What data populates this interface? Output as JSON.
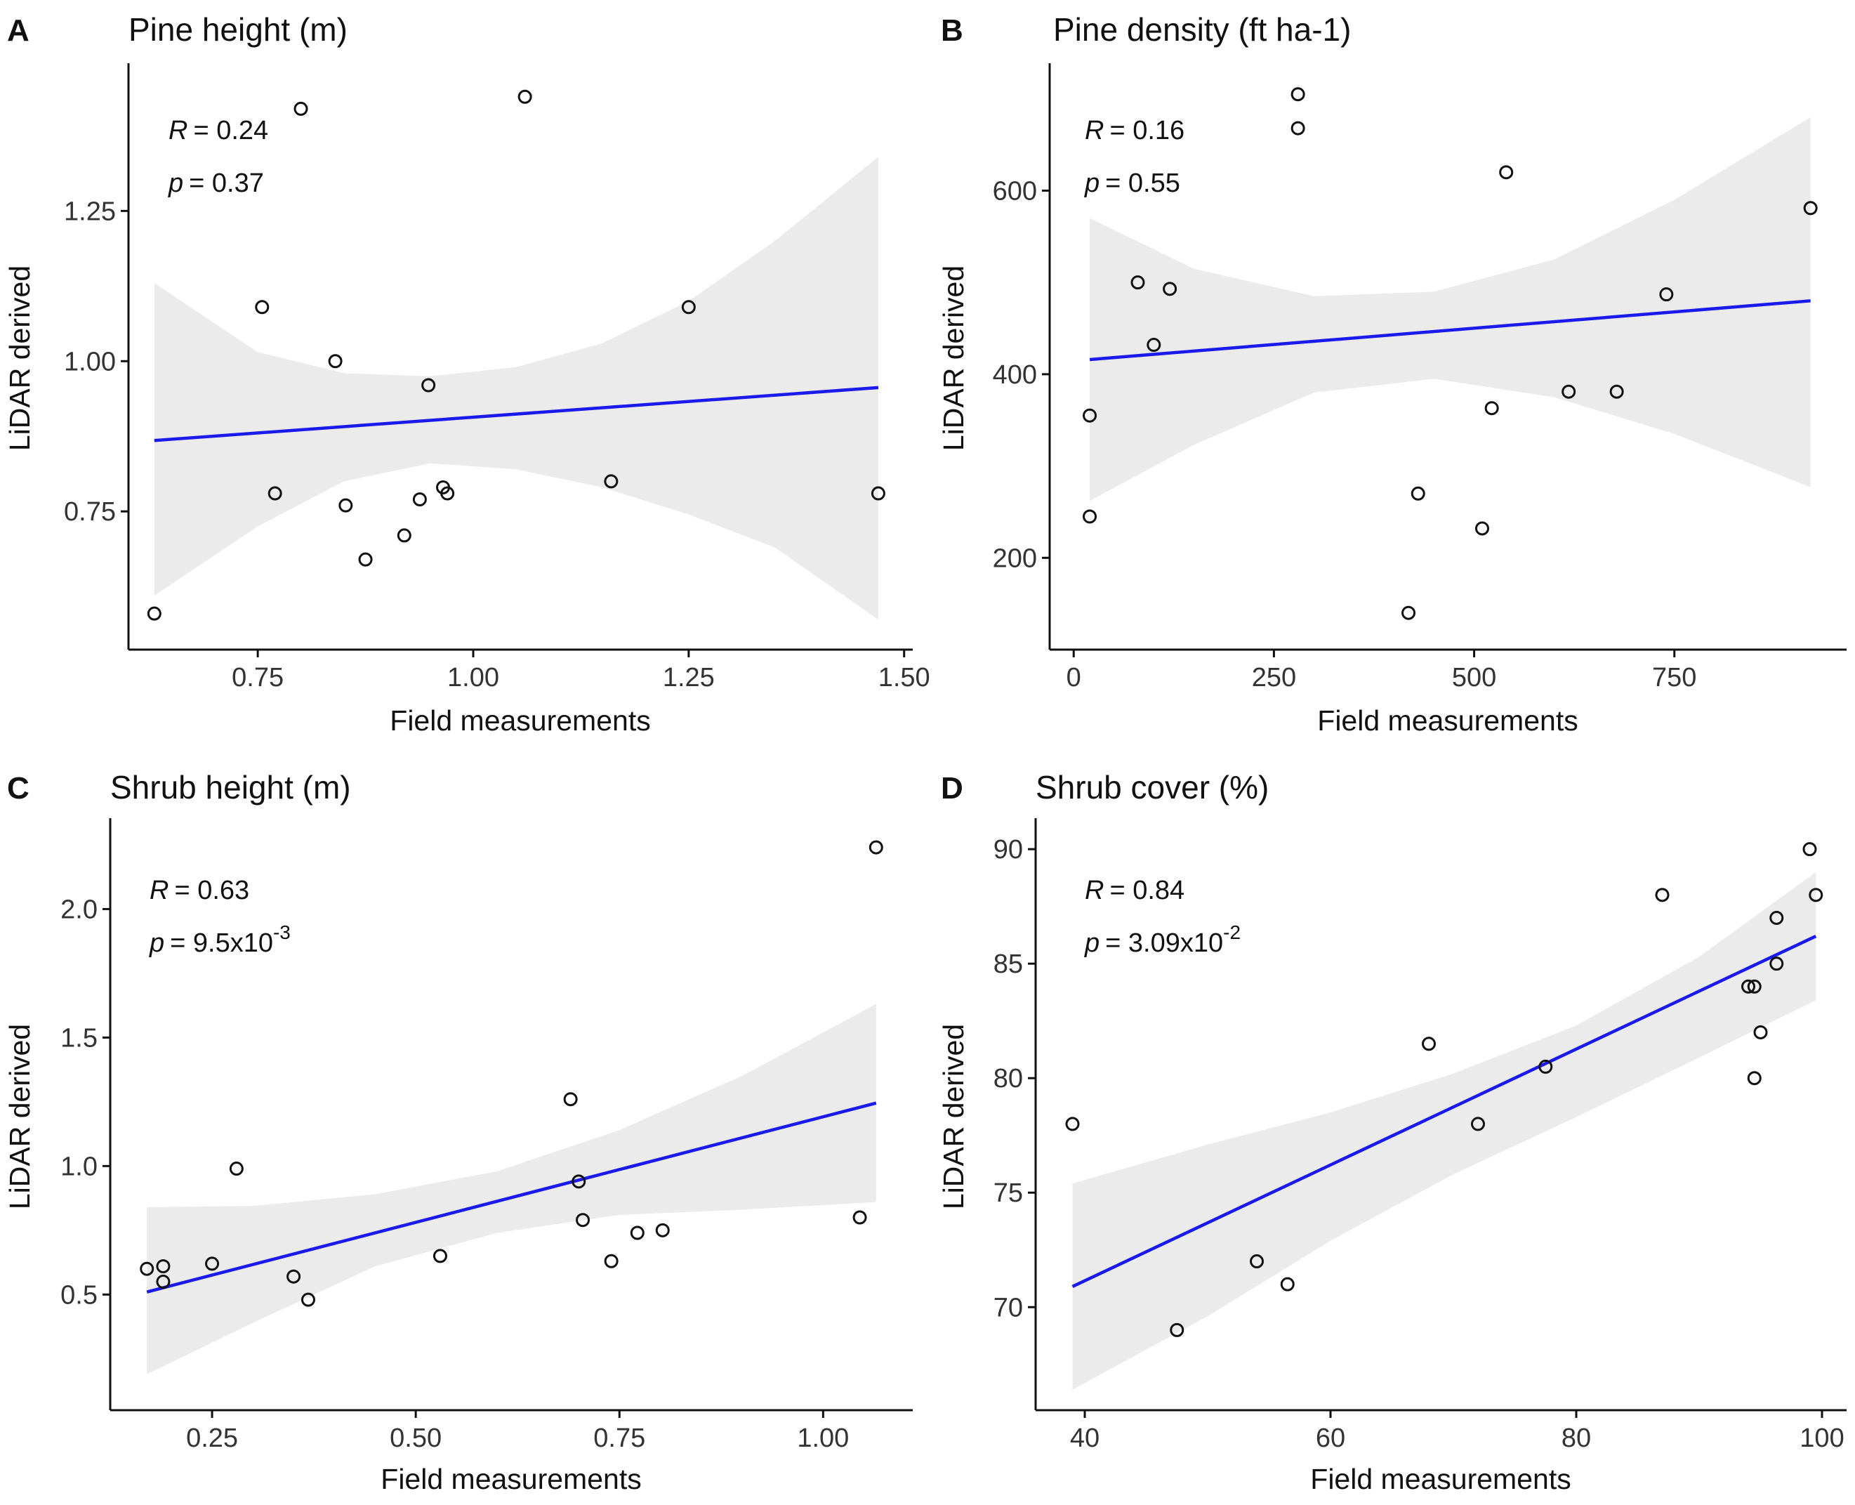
{
  "colors": {
    "fit_line": "#1a1aee",
    "ci_band": "#ebebeb",
    "point_stroke": "#111111"
  },
  "chart_data": [
    {
      "panel": "A",
      "type": "scatter",
      "title": "Pine height (m)",
      "xlabel": "Field measurements",
      "ylabel": "LiDAR derived",
      "xlim": [
        0.6,
        1.51
      ],
      "ylim": [
        0.52,
        1.49
      ],
      "xticks": [
        0.75,
        1.0,
        1.25,
        1.5
      ],
      "xtick_labels": [
        "0.75",
        "1.00",
        "1.25",
        "1.50"
      ],
      "yticks": [
        0.75,
        1.0,
        1.25
      ],
      "ytick_labels": [
        "0.75",
        "1.00",
        "1.25"
      ],
      "annotation": {
        "r_label": "R",
        "r_value": "= 0.24",
        "p_label": "p",
        "p_value": "= 0.37",
        "p_exponent": ""
      },
      "fit": {
        "x_range": [
          0.63,
          1.47
        ],
        "y_range": [
          0.868,
          0.956
        ]
      },
      "ci": {
        "x": [
          0.63,
          0.75,
          0.85,
          0.95,
          1.05,
          1.15,
          1.25,
          1.35,
          1.47
        ],
        "upper": [
          1.13,
          1.015,
          0.98,
          0.975,
          0.99,
          1.03,
          1.1,
          1.2,
          1.34
        ],
        "lower": [
          0.61,
          0.725,
          0.8,
          0.83,
          0.82,
          0.79,
          0.745,
          0.69,
          0.57
        ]
      },
      "points": [
        {
          "x": 0.63,
          "y": 0.58
        },
        {
          "x": 0.755,
          "y": 1.09
        },
        {
          "x": 0.77,
          "y": 0.78
        },
        {
          "x": 0.8,
          "y": 1.42
        },
        {
          "x": 0.84,
          "y": 1.0
        },
        {
          "x": 0.852,
          "y": 0.76
        },
        {
          "x": 0.875,
          "y": 0.67
        },
        {
          "x": 0.92,
          "y": 0.71
        },
        {
          "x": 0.938,
          "y": 0.77
        },
        {
          "x": 0.948,
          "y": 0.96
        },
        {
          "x": 0.965,
          "y": 0.79
        },
        {
          "x": 0.97,
          "y": 0.78
        },
        {
          "x": 1.06,
          "y": 1.44
        },
        {
          "x": 1.16,
          "y": 0.8
        },
        {
          "x": 1.25,
          "y": 1.09
        },
        {
          "x": 1.47,
          "y": 0.78
        }
      ]
    },
    {
      "panel": "B",
      "type": "scatter",
      "title": "Pine density (ft ha-1)",
      "xlabel": "Field measurements",
      "ylabel": "LiDAR derived",
      "xlim": [
        -30,
        965
      ],
      "ylim": [
        100,
        735
      ],
      "xticks": [
        0,
        250,
        500,
        750
      ],
      "xtick_labels": [
        "0",
        "250",
        "500",
        "750"
      ],
      "yticks": [
        200,
        400,
        600
      ],
      "ytick_labels": [
        "200",
        "400",
        "600"
      ],
      "annotation": {
        "r_label": "R",
        "r_value": "= 0.16",
        "p_label": "p",
        "p_value": "= 0.55",
        "p_exponent": ""
      },
      "fit": {
        "x_range": [
          20,
          920
        ],
        "y_range": [
          416,
          480
        ]
      },
      "ci": {
        "x": [
          20,
          150,
          300,
          450,
          600,
          750,
          920
        ],
        "upper": [
          570,
          515,
          485,
          490,
          525,
          590,
          680
        ],
        "lower": [
          262,
          323,
          380,
          395,
          375,
          335,
          277
        ]
      },
      "points": [
        {
          "x": 20,
          "y": 355
        },
        {
          "x": 20,
          "y": 245
        },
        {
          "x": 80,
          "y": 500
        },
        {
          "x": 100,
          "y": 432
        },
        {
          "x": 120,
          "y": 493
        },
        {
          "x": 280,
          "y": 705
        },
        {
          "x": 280,
          "y": 668
        },
        {
          "x": 418,
          "y": 140
        },
        {
          "x": 430,
          "y": 270
        },
        {
          "x": 510,
          "y": 232
        },
        {
          "x": 522,
          "y": 363
        },
        {
          "x": 540,
          "y": 620
        },
        {
          "x": 618,
          "y": 381
        },
        {
          "x": 678,
          "y": 381
        },
        {
          "x": 740,
          "y": 487
        },
        {
          "x": 920,
          "y": 581
        }
      ]
    },
    {
      "panel": "C",
      "type": "scatter",
      "title": "Shrub height (m)",
      "xlabel": "Field measurements",
      "ylabel": "LiDAR derived",
      "xlim": [
        0.125,
        1.11
      ],
      "ylim": [
        0.05,
        2.34
      ],
      "xticks": [
        0.25,
        0.5,
        0.75,
        1.0
      ],
      "xtick_labels": [
        "0.25",
        "0.50",
        "0.75",
        "1.00"
      ],
      "yticks": [
        0.5,
        1.0,
        1.5,
        2.0
      ],
      "ytick_labels": [
        "0.5",
        "1.0",
        "1.5",
        "2.0"
      ],
      "annotation": {
        "r_label": "R",
        "r_value": "= 0.63",
        "p_label": "p",
        "p_value": "= 9.5x10",
        "p_exponent": "-3"
      },
      "fit": {
        "x_range": [
          0.17,
          1.065
        ],
        "y_range": [
          0.51,
          1.245
        ]
      },
      "ci": {
        "x": [
          0.17,
          0.3,
          0.45,
          0.6,
          0.75,
          0.9,
          1.065
        ],
        "upper": [
          0.84,
          0.845,
          0.89,
          0.98,
          1.14,
          1.35,
          1.63
        ],
        "lower": [
          0.19,
          0.39,
          0.61,
          0.74,
          0.81,
          0.83,
          0.86
        ]
      },
      "points": [
        {
          "x": 0.17,
          "y": 0.6
        },
        {
          "x": 0.19,
          "y": 0.61
        },
        {
          "x": 0.19,
          "y": 0.55
        },
        {
          "x": 0.25,
          "y": 0.62
        },
        {
          "x": 0.28,
          "y": 0.99
        },
        {
          "x": 0.35,
          "y": 0.57
        },
        {
          "x": 0.368,
          "y": 0.48
        },
        {
          "x": 0.53,
          "y": 0.65
        },
        {
          "x": 0.69,
          "y": 1.26
        },
        {
          "x": 0.7,
          "y": 0.94
        },
        {
          "x": 0.705,
          "y": 0.79
        },
        {
          "x": 0.74,
          "y": 0.63
        },
        {
          "x": 0.772,
          "y": 0.74
        },
        {
          "x": 0.803,
          "y": 0.75
        },
        {
          "x": 1.045,
          "y": 0.8
        },
        {
          "x": 1.065,
          "y": 2.24
        }
      ]
    },
    {
      "panel": "D",
      "type": "scatter",
      "title": "Shrub cover (%)",
      "xlabel": "Field measurements",
      "ylabel": "LiDAR derived",
      "xlim": [
        36,
        102
      ],
      "ylim": [
        65.5,
        91.2
      ],
      "xticks": [
        40,
        60,
        80,
        100
      ],
      "xtick_labels": [
        "40",
        "60",
        "80",
        "100"
      ],
      "yticks": [
        70,
        75,
        80,
        85,
        90
      ],
      "ytick_labels": [
        "70",
        "75",
        "80",
        "85",
        "90"
      ],
      "annotation": {
        "r_label": "R",
        "r_value": "= 0.84",
        "p_label": "p",
        "p_value": "= 3.09x10",
        "p_exponent": "-2"
      },
      "fit": {
        "x_range": [
          39,
          99.5
        ],
        "y_range": [
          70.9,
          86.2
        ]
      },
      "ci": {
        "x": [
          39,
          50,
          60,
          70,
          80,
          90,
          99.5
        ],
        "upper": [
          75.4,
          77.1,
          78.5,
          80.2,
          82.3,
          85.3,
          89.0
        ],
        "lower": [
          66.4,
          69.6,
          72.9,
          75.8,
          78.3,
          80.9,
          83.4
        ]
      },
      "points": [
        {
          "x": 39,
          "y": 78
        },
        {
          "x": 47.5,
          "y": 69
        },
        {
          "x": 54,
          "y": 72
        },
        {
          "x": 56.5,
          "y": 71
        },
        {
          "x": 68,
          "y": 81.5
        },
        {
          "x": 72,
          "y": 78
        },
        {
          "x": 77.5,
          "y": 80.5
        },
        {
          "x": 87,
          "y": 88
        },
        {
          "x": 94,
          "y": 84
        },
        {
          "x": 94.5,
          "y": 80
        },
        {
          "x": 94.5,
          "y": 84
        },
        {
          "x": 95,
          "y": 82
        },
        {
          "x": 96.3,
          "y": 87
        },
        {
          "x": 96.3,
          "y": 85
        },
        {
          "x": 99,
          "y": 90
        },
        {
          "x": 99.5,
          "y": 88
        }
      ]
    }
  ]
}
